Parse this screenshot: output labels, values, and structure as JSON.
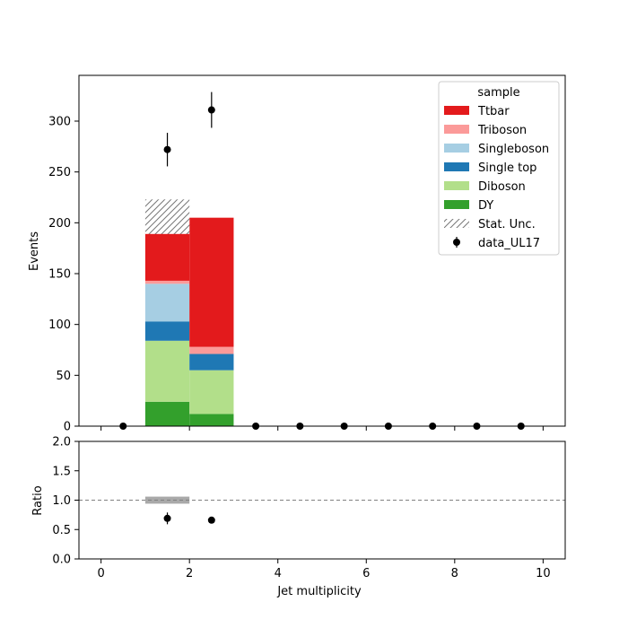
{
  "chart_data": [
    {
      "type": "bar",
      "stacked": true,
      "panel": "main",
      "ylabel": "Events",
      "xlim": [
        -0.5,
        10.5
      ],
      "ylim": [
        0,
        345
      ],
      "yticks": [
        0,
        50,
        100,
        150,
        200,
        250,
        300
      ],
      "xticks": [
        0,
        2,
        4,
        6,
        8,
        10
      ],
      "bin_edges": [
        1,
        2,
        3
      ],
      "legend": {
        "title": "sample",
        "placement": "top-right",
        "stat_unc_label": "Stat. Unc.",
        "data_label": "data_UL17"
      },
      "series": [
        {
          "name": "DY",
          "color": "#33a02c",
          "values": [
            24,
            12
          ]
        },
        {
          "name": "Diboson",
          "color": "#b2df8a",
          "values": [
            60,
            43
          ]
        },
        {
          "name": "Single top",
          "color": "#1f78b4",
          "values": [
            19,
            16
          ]
        },
        {
          "name": "Singleboson",
          "color": "#a6cee3",
          "values": [
            37,
            0
          ]
        },
        {
          "name": "Triboson",
          "color": "#fb9a99",
          "values": [
            3,
            7
          ]
        },
        {
          "name": "Ttbar",
          "color": "#e31a1c",
          "values": [
            47,
            127
          ]
        }
      ],
      "stat_unc": [
        {
          "bin": [
            1,
            2
          ],
          "low": 189,
          "high": 223
        }
      ],
      "data_points": [
        {
          "x": 0.5,
          "y": 0,
          "err": 0
        },
        {
          "x": 1.5,
          "y": 272,
          "err": 16.5
        },
        {
          "x": 2.5,
          "y": 311,
          "err": 17.6
        },
        {
          "x": 3.5,
          "y": 0,
          "err": 0
        },
        {
          "x": 4.5,
          "y": 0,
          "err": 0
        },
        {
          "x": 5.5,
          "y": 0,
          "err": 0
        },
        {
          "x": 6.5,
          "y": 0,
          "err": 0
        },
        {
          "x": 7.5,
          "y": 0,
          "err": 0
        },
        {
          "x": 8.5,
          "y": 0,
          "err": 0
        },
        {
          "x": 9.5,
          "y": 0,
          "err": 0
        }
      ]
    },
    {
      "type": "scatter",
      "panel": "ratio",
      "xlabel": "Jet multiplicity",
      "ylabel": "Ratio",
      "xlim": [
        -0.5,
        10.5
      ],
      "ylim": [
        0,
        2
      ],
      "yticks": [
        "0.0",
        "0.5",
        "1.0",
        "1.5",
        "2.0"
      ],
      "xticks": [
        "0",
        "2",
        "4",
        "6",
        "8",
        "10"
      ],
      "reference_line": 1.0,
      "unc_band": [
        {
          "bin": [
            1,
            2
          ],
          "low": 0.94,
          "high": 1.06
        }
      ],
      "points": [
        {
          "x": 1.5,
          "y": 0.69,
          "err": 0.1
        },
        {
          "x": 2.5,
          "y": 0.66,
          "err": 0.0
        }
      ]
    }
  ]
}
